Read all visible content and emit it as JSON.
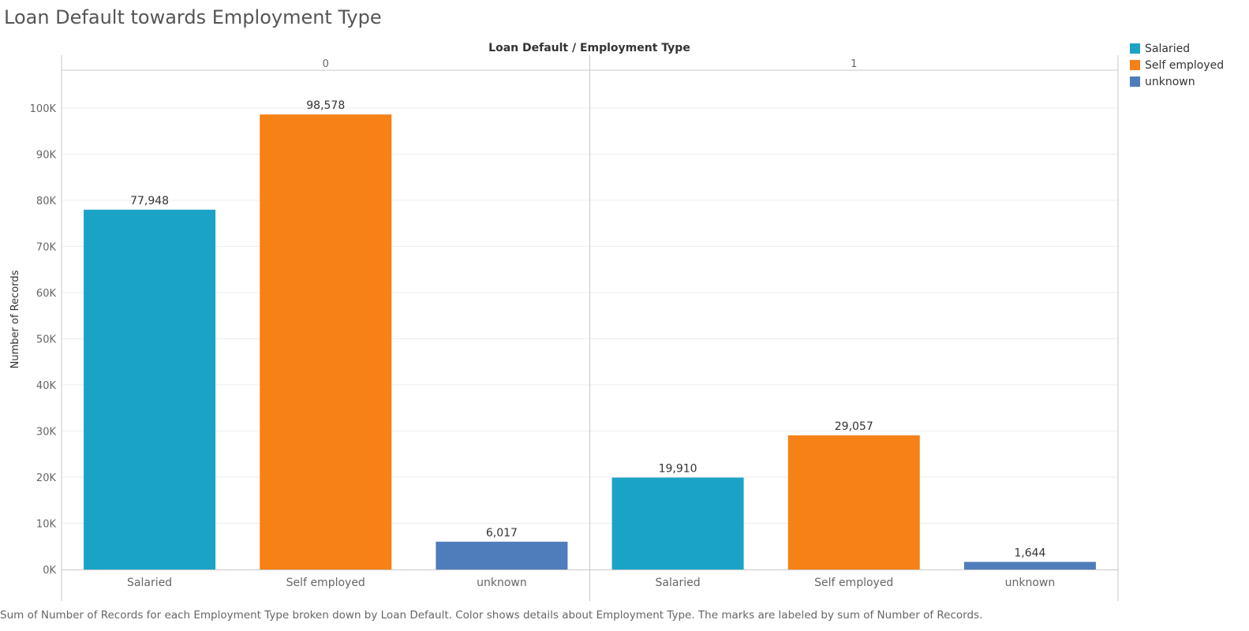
{
  "colors": {
    "Salaried": "#1ba3c6",
    "Self employed": "#f58117",
    "unknown": "#4f7cba",
    "axis": "#c8c8c8",
    "grid": "#eeeeee",
    "text": "#333333",
    "tick_text": "#666666"
  },
  "chart_data": {
    "type": "bar",
    "title": "Loan Default towards Employment Type",
    "header": "Loan Default  /  Employment Type",
    "ylabel": "Number of Records",
    "ylim": [
      0,
      108000
    ],
    "yticks": [
      0,
      10000,
      20000,
      30000,
      40000,
      50000,
      60000,
      70000,
      80000,
      90000,
      100000
    ],
    "ytick_labels": [
      "0K",
      "10K",
      "20K",
      "30K",
      "40K",
      "50K",
      "60K",
      "70K",
      "80K",
      "90K",
      "100K"
    ],
    "grid": true,
    "panels": [
      {
        "label": "0",
        "categories": [
          "Salaried",
          "Self employed",
          "unknown"
        ],
        "values": [
          77948,
          98578,
          6017
        ],
        "value_labels": [
          "77,948",
          "98,578",
          "6,017"
        ]
      },
      {
        "label": "1",
        "categories": [
          "Salaried",
          "Self employed",
          "unknown"
        ],
        "values": [
          19910,
          29057,
          1644
        ],
        "value_labels": [
          "19,910",
          "29,057",
          "1,644"
        ]
      }
    ],
    "legend": {
      "placement": "top-right",
      "items": [
        "Salaried",
        "Self employed",
        "unknown"
      ]
    },
    "caption": "Sum of Number of Records for each Employment Type broken down by Loan Default.  Color shows details about Employment Type.  The marks are labeled by sum of Number of Records."
  }
}
